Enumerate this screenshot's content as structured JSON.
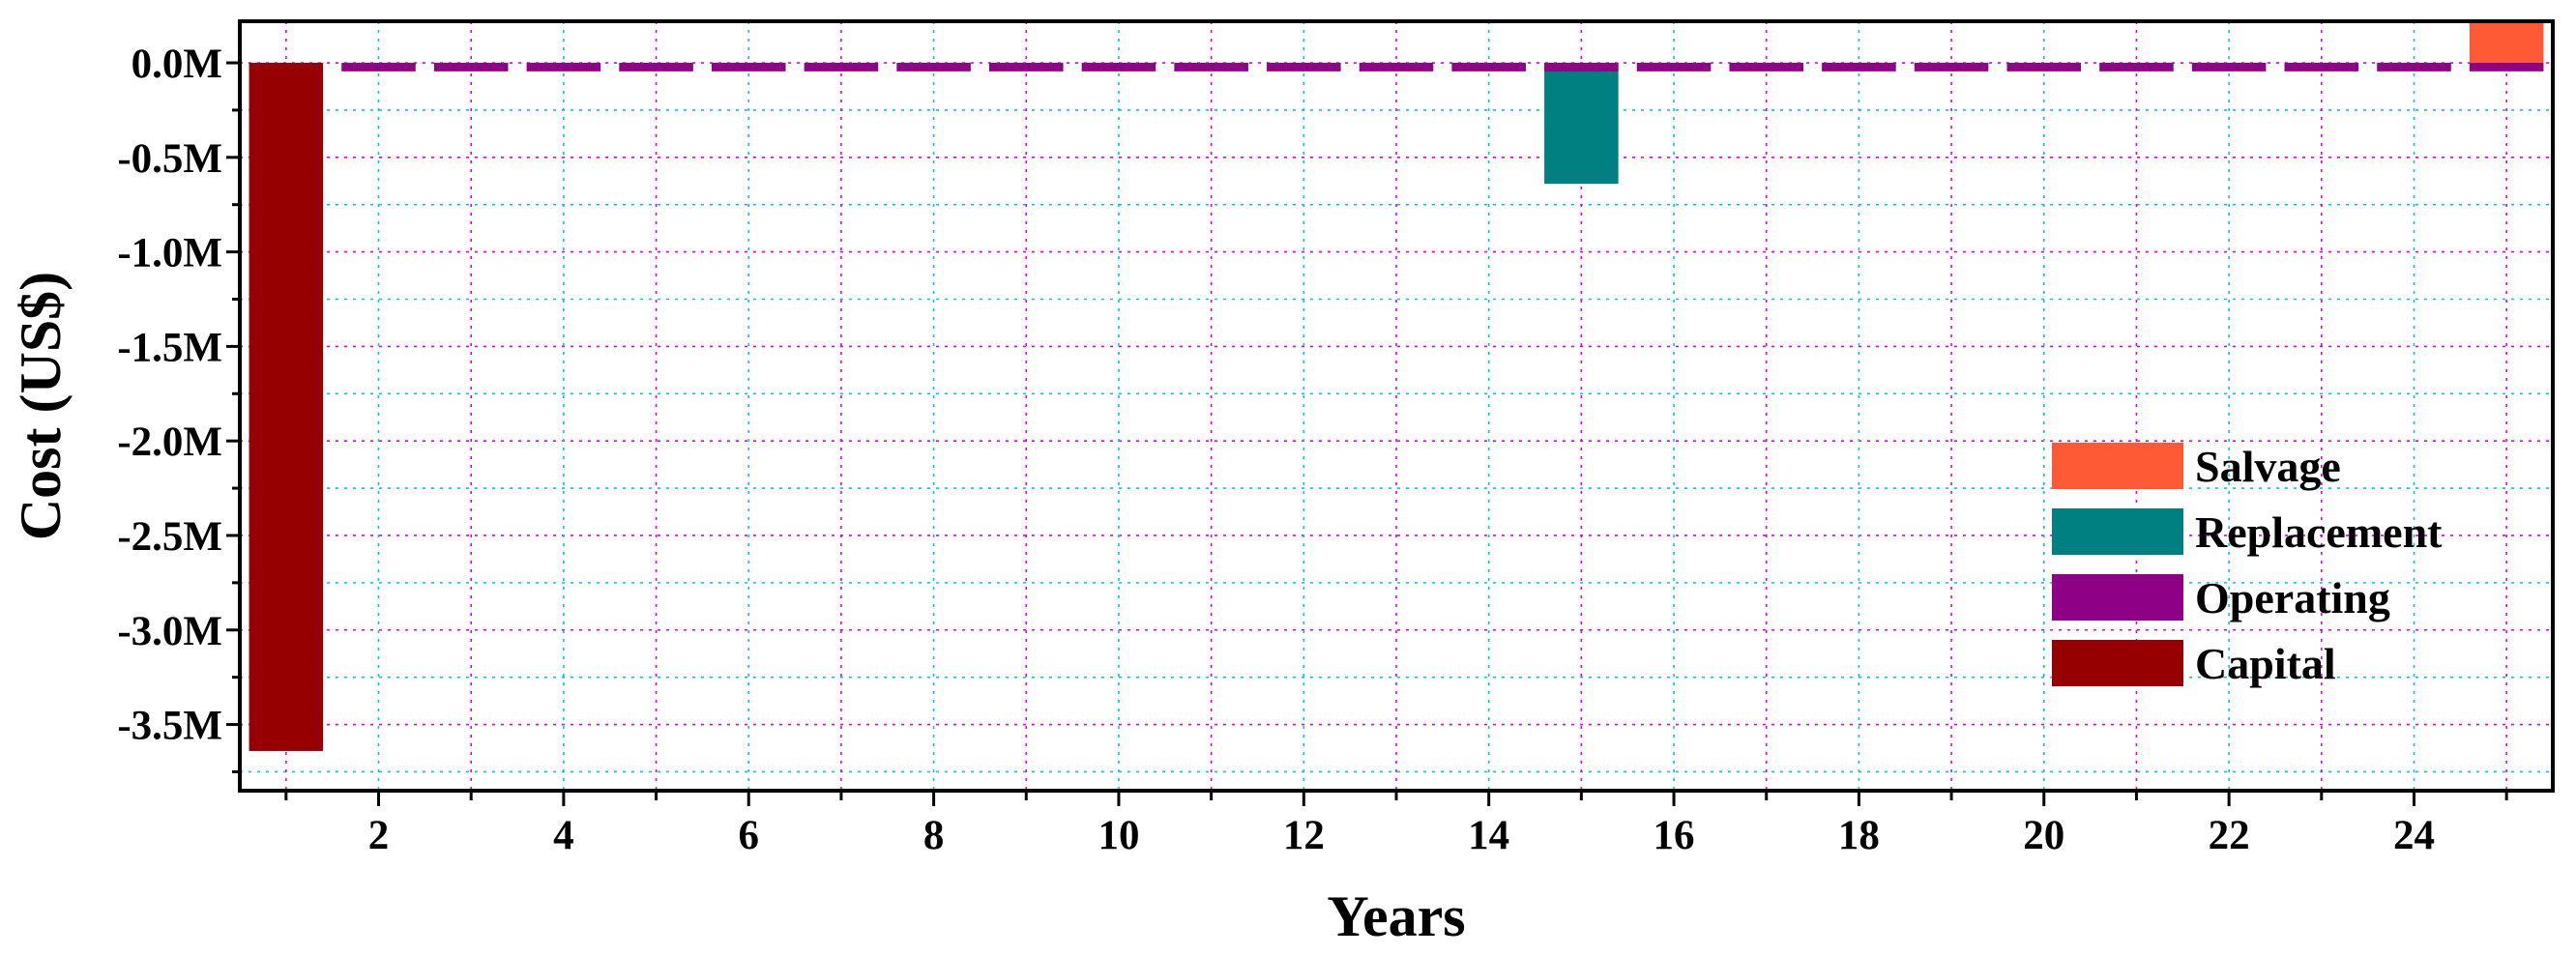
{
  "chart_data": {
    "type": "bar",
    "xlabel": "Years",
    "ylabel": "Cost (US$)",
    "x": [
      1,
      2,
      3,
      4,
      5,
      6,
      7,
      8,
      9,
      10,
      11,
      12,
      13,
      14,
      15,
      16,
      17,
      18,
      19,
      20,
      21,
      22,
      23,
      24,
      25
    ],
    "xtick_labels": [
      "2",
      "4",
      "6",
      "8",
      "10",
      "12",
      "14",
      "16",
      "18",
      "20",
      "22",
      "24"
    ],
    "xtick_values": [
      2,
      4,
      6,
      8,
      10,
      12,
      14,
      16,
      18,
      20,
      22,
      24
    ],
    "xlim": [
      0.5,
      25.5
    ],
    "ylim": [
      -3.85,
      0.22
    ],
    "ytick_values": [
      0,
      -0.5,
      -1.0,
      -1.5,
      -2.0,
      -2.5,
      -3.0,
      -3.5
    ],
    "ytick_labels": [
      "0.0M",
      "-0.5M",
      "-1.0M",
      "-1.5M",
      "-2.0M",
      "-2.5M",
      "-3.0M",
      "-3.5M"
    ],
    "grid": true,
    "legend_position": "bottom-right",
    "series": [
      {
        "name": "Salvage",
        "color": "#ff5a36",
        "values": [
          0,
          0,
          0,
          0,
          0,
          0,
          0,
          0,
          0,
          0,
          0,
          0,
          0,
          0,
          0,
          0,
          0,
          0,
          0,
          0,
          0,
          0,
          0,
          0,
          0.21
        ]
      },
      {
        "name": "Replacement",
        "color": "#008080",
        "values": [
          0,
          0,
          0,
          0,
          0,
          0,
          0,
          0,
          0,
          0,
          0,
          0,
          0,
          0,
          -0.64,
          0,
          0,
          0,
          0,
          0,
          0,
          0,
          0,
          0,
          0
        ]
      },
      {
        "name": "Operating",
        "color": "#8e0085",
        "values": [
          0,
          -0.045,
          -0.045,
          -0.045,
          -0.045,
          -0.045,
          -0.045,
          -0.045,
          -0.045,
          -0.045,
          -0.045,
          -0.045,
          -0.045,
          -0.045,
          -0.045,
          -0.045,
          -0.045,
          -0.045,
          -0.045,
          -0.045,
          -0.045,
          -0.045,
          -0.045,
          -0.045,
          -0.045
        ]
      },
      {
        "name": "Capital",
        "color": "#960000",
        "values": [
          -3.64,
          0,
          0,
          0,
          0,
          0,
          0,
          0,
          0,
          0,
          0,
          0,
          0,
          0,
          0,
          0,
          0,
          0,
          0,
          0,
          0,
          0,
          0,
          0,
          0
        ]
      }
    ]
  }
}
